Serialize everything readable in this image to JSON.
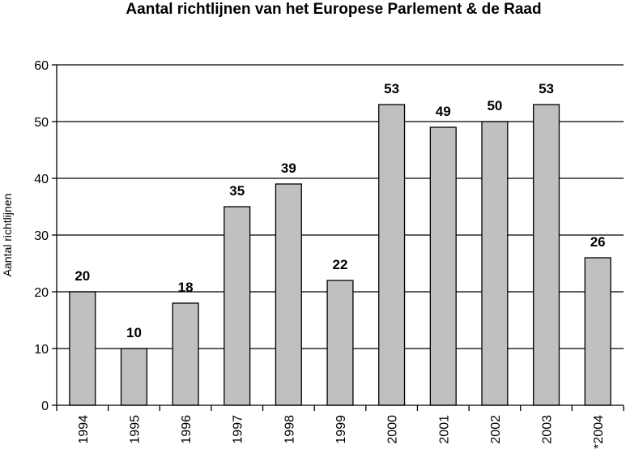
{
  "chart_data": {
    "type": "bar",
    "title": "Aantal richtlijnen van het Europese Parlement & de Raad",
    "xlabel": "",
    "ylabel": "Aantal  richtlijnen",
    "categories": [
      "1994",
      "1995",
      "1996",
      "1997",
      "1998",
      "1999",
      "2000",
      "2001",
      "2002",
      "2003",
      "*2004"
    ],
    "values": [
      20,
      10,
      18,
      35,
      39,
      22,
      53,
      49,
      50,
      53,
      26
    ],
    "data_labels": [
      "20",
      "10",
      "18",
      "35",
      "39",
      "22",
      "53",
      "49",
      "50",
      "53",
      "26"
    ],
    "ylim": [
      0,
      60
    ],
    "yticks": [
      0,
      10,
      20,
      30,
      40,
      50,
      60
    ],
    "ytick_labels": [
      "0",
      "10",
      "20",
      "30",
      "40",
      "50",
      "60"
    ],
    "grid": true,
    "legend": "none",
    "bar_color": "#c0c0c0"
  }
}
